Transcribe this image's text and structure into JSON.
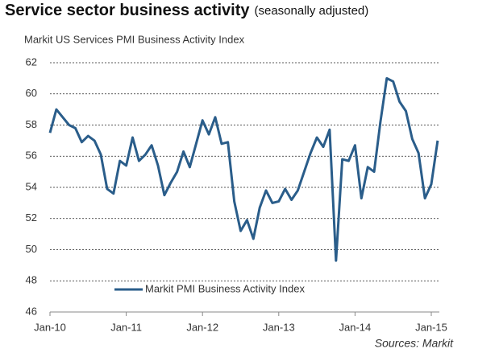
{
  "chart_data": {
    "type": "line",
    "title": "Service sector business activity",
    "title_note": "(seasonally adjusted)",
    "subtitle": "Markit US Services PMI Business Activity Index",
    "source": "Sources: Markit",
    "categories": [
      "Jan-10",
      null,
      null,
      null,
      null,
      null,
      null,
      null,
      null,
      null,
      null,
      null,
      "Jan-11",
      null,
      null,
      null,
      null,
      null,
      null,
      null,
      null,
      null,
      null,
      null,
      "Jan-12",
      null,
      null,
      null,
      null,
      null,
      null,
      null,
      null,
      null,
      null,
      null,
      "Jan-13",
      null,
      null,
      null,
      null,
      null,
      null,
      null,
      null,
      null,
      null,
      null,
      "Jan-14",
      null,
      null,
      null,
      null,
      null,
      null,
      null,
      null,
      null,
      null,
      null,
      "Jan-15",
      null
    ],
    "series": [
      {
        "name": "Markit PMI Business Activity Index",
        "color": "#2a5d8a",
        "values": [
          57.5,
          59.0,
          58.5,
          58.0,
          57.8,
          56.9,
          57.3,
          57.0,
          56.1,
          53.9,
          53.6,
          55.7,
          55.4,
          57.2,
          55.7,
          56.1,
          56.7,
          55.4,
          53.5,
          54.3,
          55.0,
          56.3,
          55.3,
          56.8,
          58.3,
          57.4,
          58.5,
          56.8,
          56.9,
          53.1,
          51.2,
          51.9,
          50.7,
          52.7,
          53.8,
          53.0,
          53.1,
          53.9,
          53.2,
          53.8,
          55.0,
          56.2,
          57.2,
          56.6,
          57.7,
          49.3,
          55.8,
          55.7,
          56.7,
          53.3,
          55.3,
          55.0,
          58.2,
          61.0,
          60.8,
          59.5,
          58.9,
          57.1,
          56.2,
          53.3,
          54.2,
          57.0
        ]
      }
    ],
    "ylim": [
      46,
      62
    ],
    "yticks": [
      46,
      48,
      50,
      52,
      54,
      56,
      58,
      60,
      62
    ],
    "grid": true,
    "legend": "bottom-left"
  }
}
